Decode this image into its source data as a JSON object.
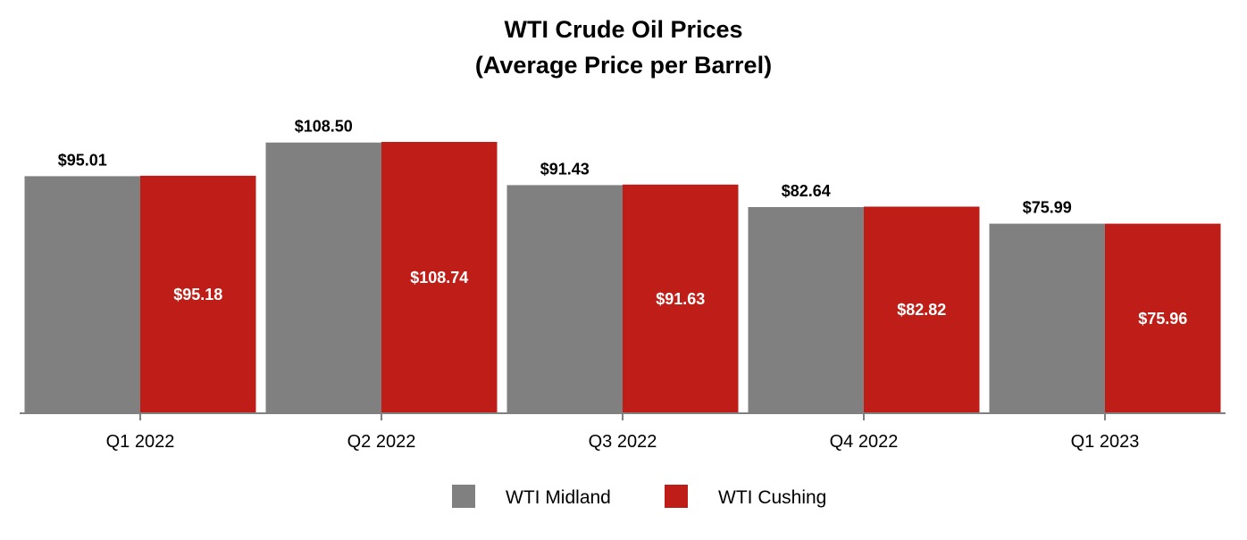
{
  "chart_data": {
    "type": "bar",
    "title": [
      "WTI Crude Oil Prices",
      "(Average Price per Barrel)"
    ],
    "categories": [
      "Q1 2022",
      "Q2 2022",
      "Q3 2022",
      "Q4 2022",
      "Q1 2023"
    ],
    "series": [
      {
        "name": "WTI Midland",
        "color": "#808080",
        "values": [
          95.01,
          108.5,
          91.43,
          82.64,
          75.99
        ],
        "labels": [
          "$95.01",
          "$108.50",
          "$91.43",
          "$82.64",
          "$75.99"
        ],
        "label_position": "outside-top",
        "label_color": "#000000"
      },
      {
        "name": "WTI Cushing",
        "color": "#BE1E17",
        "values": [
          95.18,
          108.74,
          91.63,
          82.82,
          75.96
        ],
        "labels": [
          "$95.18",
          "$108.74",
          "$91.63",
          "$82.82",
          "$75.96"
        ],
        "label_position": "inside-center",
        "label_color": "#ffffff"
      }
    ],
    "xlabel": "",
    "ylabel": "",
    "ylim": [
      0,
      108.74
    ],
    "grid": false,
    "legend": "bottom-center",
    "axis_color": "#808080"
  }
}
